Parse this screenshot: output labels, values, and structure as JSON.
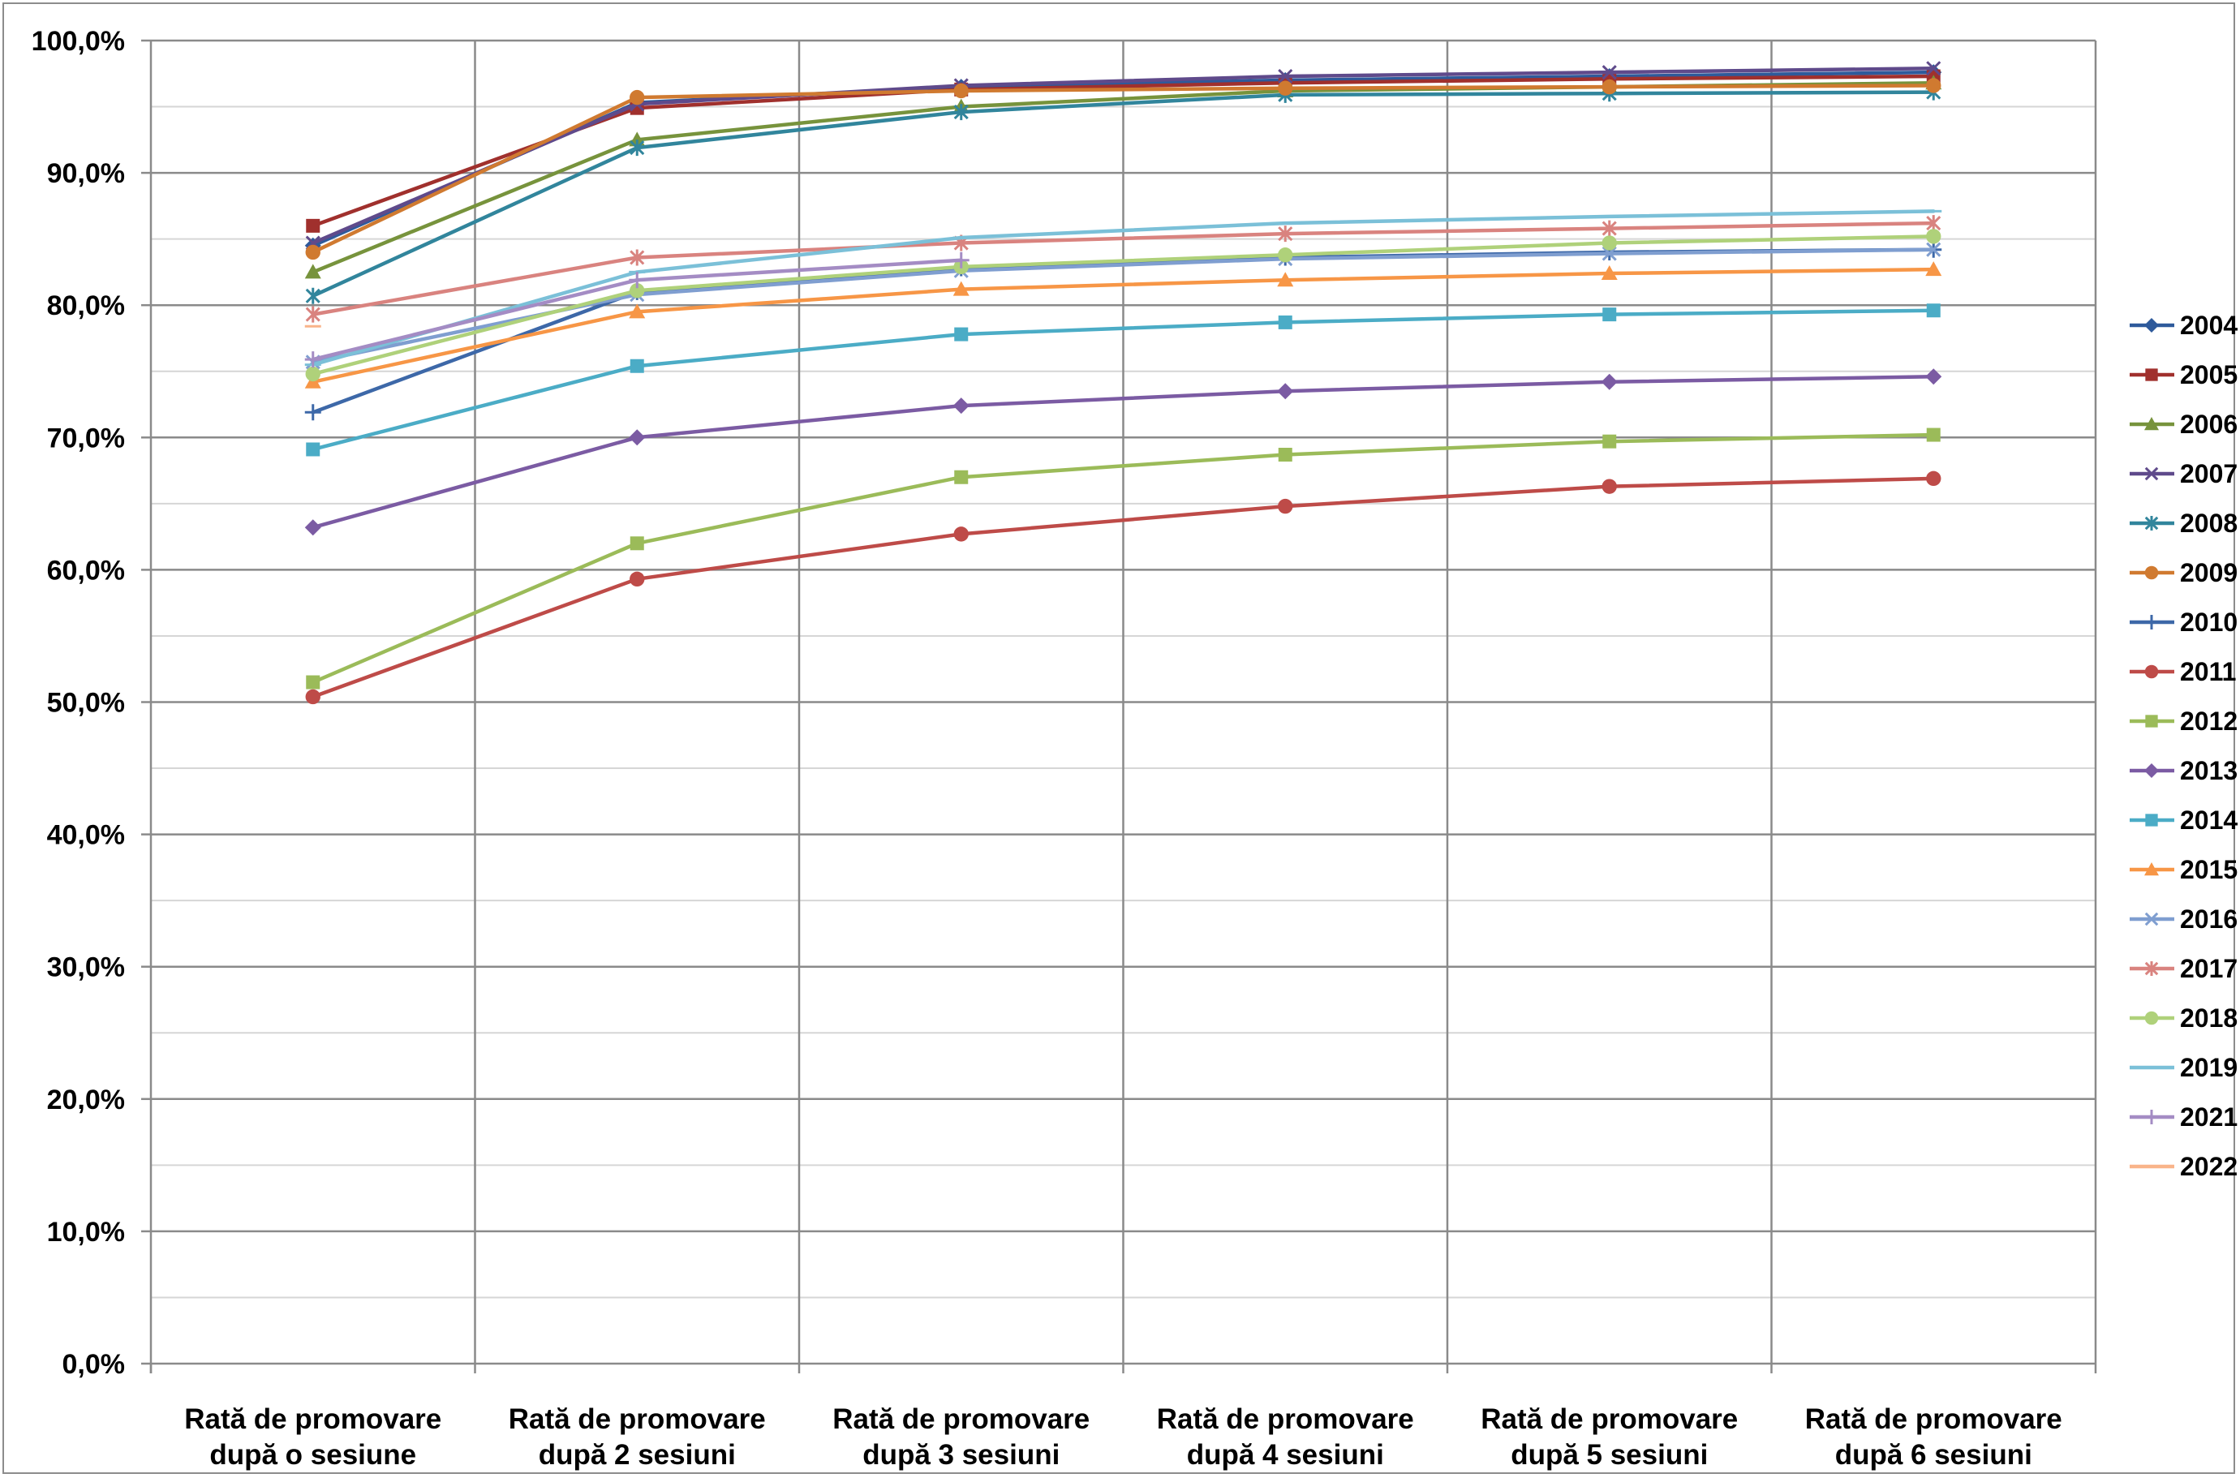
{
  "chart_data": {
    "type": "line",
    "title": "",
    "xlabel": "",
    "ylabel": "",
    "ylim": [
      0,
      100
    ],
    "y_ticks": [
      "0,0%",
      "10,0%",
      "20,0%",
      "30,0%",
      "40,0%",
      "50,0%",
      "60,0%",
      "70,0%",
      "80,0%",
      "90,0%",
      "100,0%"
    ],
    "categories": [
      [
        "Rată de promovare",
        "după o sesiune"
      ],
      [
        "Rată de promovare",
        "după 2 sesiuni"
      ],
      [
        "Rată de promovare",
        "după 3 sesiuni"
      ],
      [
        "Rată de promovare",
        "după 4 sesiuni"
      ],
      [
        "Rată de promovare",
        "după 5 sesiuni"
      ],
      [
        "Rată de promovare",
        "după 6 sesiuni"
      ]
    ],
    "grid": true,
    "legend_position": "right",
    "series": [
      {
        "name": "2004",
        "color": "#2E5A9B",
        "marker": "diamond",
        "values": [
          84.5,
          95.3,
          96.5,
          97.0,
          97.3,
          97.6
        ]
      },
      {
        "name": "2005",
        "color": "#A0302D",
        "marker": "square",
        "values": [
          86.0,
          94.9,
          96.3,
          96.8,
          97.1,
          97.3
        ]
      },
      {
        "name": "2006",
        "color": "#77933C",
        "marker": "triangle",
        "values": [
          82.5,
          92.5,
          95.0,
          96.2,
          96.5,
          96.8
        ]
      },
      {
        "name": "2007",
        "color": "#5F4A8B",
        "marker": "x",
        "values": [
          84.7,
          95.2,
          96.6,
          97.3,
          97.6,
          97.9
        ]
      },
      {
        "name": "2008",
        "color": "#31859C",
        "marker": "asterisk",
        "values": [
          80.7,
          91.9,
          94.6,
          95.9,
          96.0,
          96.1
        ]
      },
      {
        "name": "2009",
        "color": "#D07A30",
        "marker": "circle",
        "values": [
          84.0,
          95.7,
          96.2,
          96.4,
          96.5,
          96.6
        ]
      },
      {
        "name": "2010",
        "color": "#3D68A8",
        "marker": "plus",
        "values": [
          71.9,
          81.0,
          82.8,
          83.6,
          84.0,
          84.2
        ]
      },
      {
        "name": "2011",
        "color": "#BE4B48",
        "marker": "circle",
        "values": [
          50.4,
          59.3,
          62.7,
          64.8,
          66.3,
          66.9
        ]
      },
      {
        "name": "2012",
        "color": "#9BBB59",
        "marker": "square",
        "values": [
          51.5,
          62.0,
          67.0,
          68.7,
          69.7,
          70.2
        ]
      },
      {
        "name": "2013",
        "color": "#7B5BA3",
        "marker": "diamond",
        "values": [
          63.2,
          70.0,
          72.4,
          73.5,
          74.2,
          74.6
        ]
      },
      {
        "name": "2014",
        "color": "#4BACC6",
        "marker": "square",
        "values": [
          69.1,
          75.4,
          77.8,
          78.7,
          79.3,
          79.6
        ]
      },
      {
        "name": "2015",
        "color": "#F79646",
        "marker": "triangle",
        "values": [
          74.2,
          79.5,
          81.2,
          81.9,
          82.4,
          82.7
        ]
      },
      {
        "name": "2016",
        "color": "#7F9ED0",
        "marker": "x",
        "values": [
          75.7,
          80.8,
          82.6,
          83.5,
          83.9,
          84.2
        ]
      },
      {
        "name": "2017",
        "color": "#D9837F",
        "marker": "asterisk",
        "values": [
          79.3,
          83.6,
          84.7,
          85.4,
          85.8,
          86.2
        ]
      },
      {
        "name": "2018",
        "color": "#AFD17A",
        "marker": "circle",
        "values": [
          74.8,
          81.1,
          82.9,
          83.8,
          84.7,
          85.2
        ]
      },
      {
        "name": "2019",
        "color": "#7BC0D8",
        "marker": "none",
        "values": [
          75.5,
          82.5,
          85.1,
          86.2,
          86.7,
          87.1
        ]
      },
      {
        "name": "2021",
        "color": "#A48CC4",
        "marker": "plus",
        "values": [
          75.9,
          81.9,
          83.4,
          null,
          null,
          null
        ]
      },
      {
        "name": "2022",
        "color": "#F9B48A",
        "marker": "none",
        "values": [
          78.4,
          null,
          null,
          null,
          null,
          null
        ]
      }
    ]
  }
}
